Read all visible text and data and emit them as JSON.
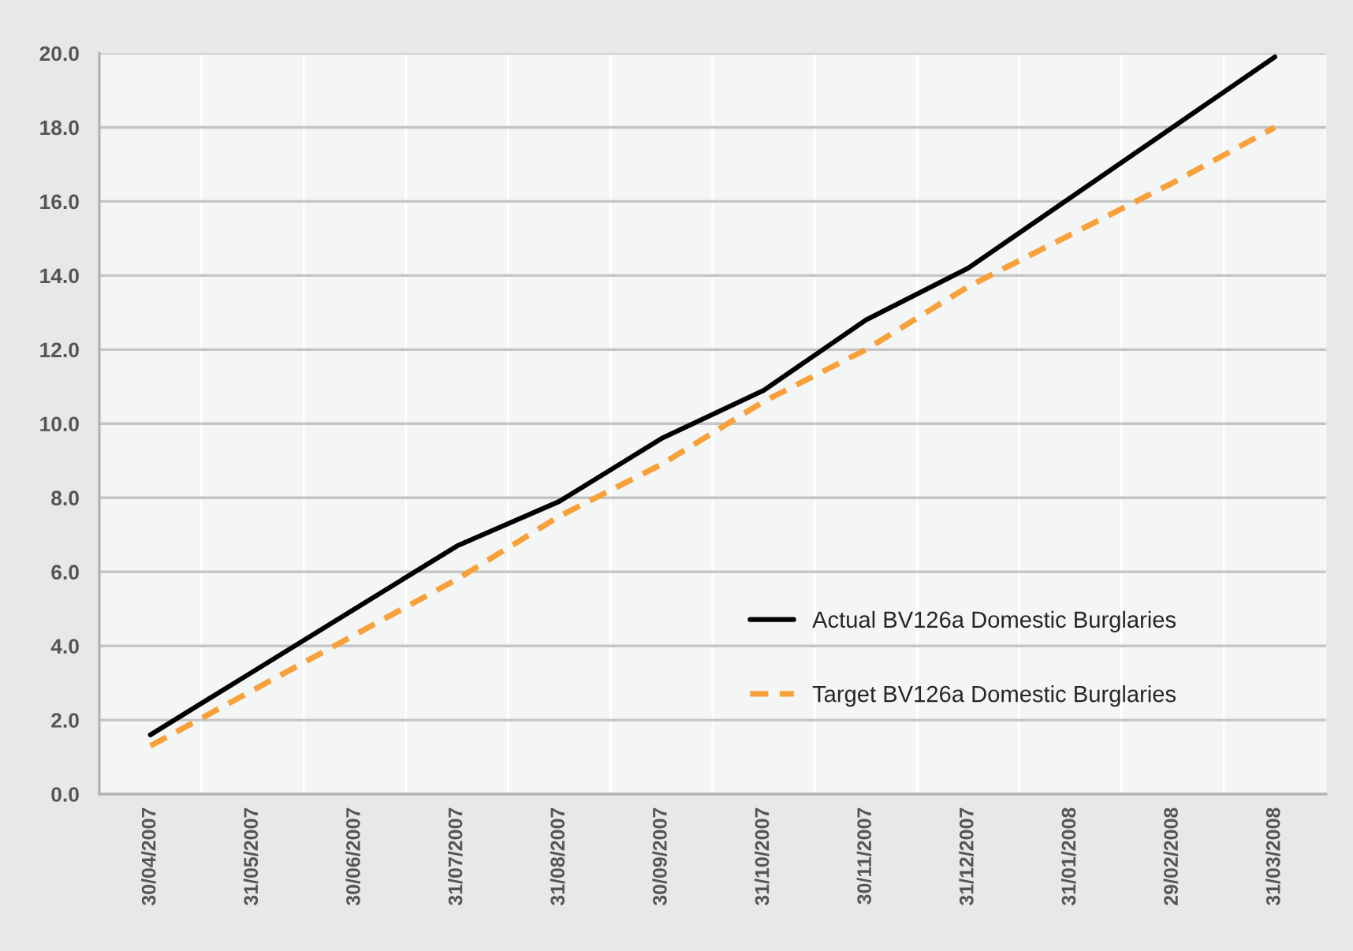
{
  "chart_data": {
    "type": "line",
    "categories": [
      "30/04/2007",
      "31/05/2007",
      "30/06/2007",
      "31/07/2007",
      "31/08/2007",
      "30/09/2007",
      "31/10/2007",
      "30/11/2007",
      "31/12/2007",
      "31/01/2008",
      "29/02/2008",
      "31/03/2008"
    ],
    "series": [
      {
        "name": "Actual BV126a Domestic Burglaries",
        "color": "#000000",
        "line_style": "solid",
        "values": [
          1.6,
          3.3,
          5.0,
          6.7,
          7.9,
          9.6,
          10.9,
          12.8,
          14.2,
          16.1,
          18.0,
          19.9
        ]
      },
      {
        "name": "Target BV126a Domestic Burglaries",
        "color": "#f8a13a",
        "line_style": "dashed",
        "values": [
          1.3,
          2.8,
          4.3,
          5.8,
          7.5,
          8.9,
          10.6,
          12.0,
          13.7,
          15.1,
          16.5,
          18.0
        ]
      }
    ],
    "ylim": [
      0,
      20
    ],
    "yticks": [
      {
        "value": 0,
        "label": "0.0"
      },
      {
        "value": 2,
        "label": "2.0"
      },
      {
        "value": 4,
        "label": "4.0"
      },
      {
        "value": 6,
        "label": "6.0"
      },
      {
        "value": 8,
        "label": "8.0"
      },
      {
        "value": 10,
        "label": "10.0"
      },
      {
        "value": 12,
        "label": "12.0"
      },
      {
        "value": 14,
        "label": "14.0"
      },
      {
        "value": 16,
        "label": "16.0"
      },
      {
        "value": 18,
        "label": "18.0"
      },
      {
        "value": 20,
        "label": "20.0"
      }
    ],
    "grid": true,
    "legend": "bottom right"
  }
}
